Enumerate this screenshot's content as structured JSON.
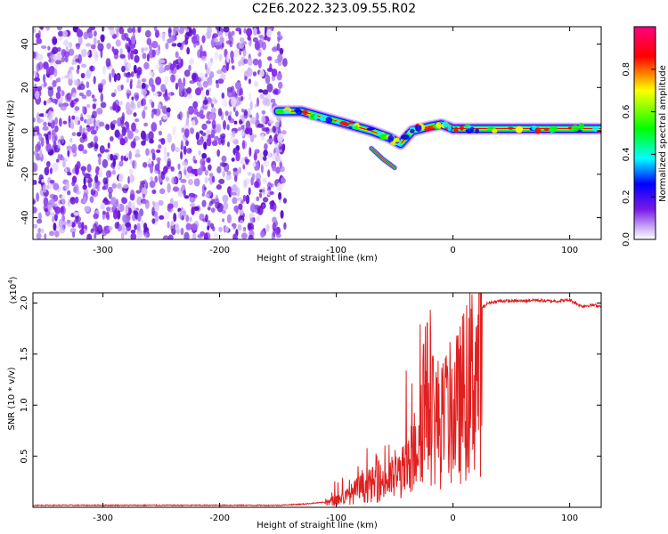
{
  "page": {
    "title": "C2E6.2022.323.09.55.R02"
  },
  "colors": {
    "purple_noise": "#7a1ae8",
    "snr_line": "#e02020",
    "axis": "#000000"
  },
  "chart_data": [
    {
      "type": "heatmap",
      "title": "",
      "xlabel": "Height of straight line (km)",
      "ylabel": "Frequency (Hz)",
      "xlim": [
        -360,
        127
      ],
      "ylim": [
        -50,
        48
      ],
      "xticks": [
        -300,
        -200,
        -100,
        0,
        100
      ],
      "yticks": [
        -40,
        -20,
        0,
        20,
        40
      ],
      "colorbar": {
        "label": "Normalized spectral amplitude",
        "range": [
          0,
          1
        ],
        "ticks": [
          "0.0",
          "0.2",
          "0.4",
          "0.6",
          "0.8"
        ],
        "colormap": [
          "#ffffff",
          "#7a1ae8",
          "#0000ff",
          "#00ffff",
          "#00ff00",
          "#ffff00",
          "#ff0000",
          "#ff0080"
        ]
      },
      "noise_region_end_km": -150,
      "signal_track": {
        "x_km": [
          -150,
          -130,
          -110,
          -90,
          -70,
          -55,
          -45,
          -35,
          -20,
          -10,
          0,
          20,
          60,
          100,
          127
        ],
        "freq_hz": [
          9,
          9,
          6,
          3,
          0,
          -3,
          -6,
          0,
          2,
          3,
          1,
          1,
          1,
          1,
          1
        ],
        "branch": {
          "x_km": [
            -70,
            -60,
            -50
          ],
          "freq_hz": [
            -8,
            -13,
            -17
          ]
        }
      }
    },
    {
      "type": "line",
      "title": "",
      "xlabel": "Height of straight line (km)",
      "ylabel": "SNR (10 * v/v)",
      "y_multiplier": "(x10",
      "y_multiplier_exp": "4",
      "y_multiplier_close": ")",
      "xlim": [
        -360,
        127
      ],
      "ylim": [
        0,
        2.1
      ],
      "xticks": [
        -300,
        -200,
        -100,
        0,
        100
      ],
      "yticks": [
        "0.5",
        "1.0",
        "1.5",
        "2.0"
      ],
      "series": [
        {
          "x": [
            -360,
            -250,
            -150,
            -130,
            -110,
            -100,
            -90,
            -80,
            -70,
            -60,
            -50,
            -40,
            -35,
            -30,
            -25,
            -20,
            -15,
            -10,
            -5,
            0,
            5,
            10,
            15,
            20,
            25,
            30,
            40,
            50,
            60,
            70,
            80,
            90,
            100,
            110,
            120,
            127
          ],
          "y": [
            0.02,
            0.02,
            0.02,
            0.03,
            0.05,
            0.1,
            0.15,
            0.25,
            0.3,
            0.35,
            0.4,
            0.5,
            0.6,
            1.0,
            1.5,
            1.4,
            1.2,
            1.1,
            1.2,
            1.3,
            1.35,
            1.55,
            1.7,
            1.85,
            1.95,
            2.0,
            2.02,
            2.02,
            2.02,
            2.03,
            2.02,
            2.02,
            2.03,
            1.97,
            1.98,
            1.97
          ]
        }
      ],
      "noise_amplitude": [
        {
          "x_from": -110,
          "x_to": -45,
          "amp": 0.3
        },
        {
          "x_from": -45,
          "x_to": -15,
          "amp": 0.9
        },
        {
          "x_from": -15,
          "x_to": 25,
          "amp": 0.4
        },
        {
          "x_from": 25,
          "x_to": 127,
          "amp": 0.03
        }
      ]
    }
  ]
}
